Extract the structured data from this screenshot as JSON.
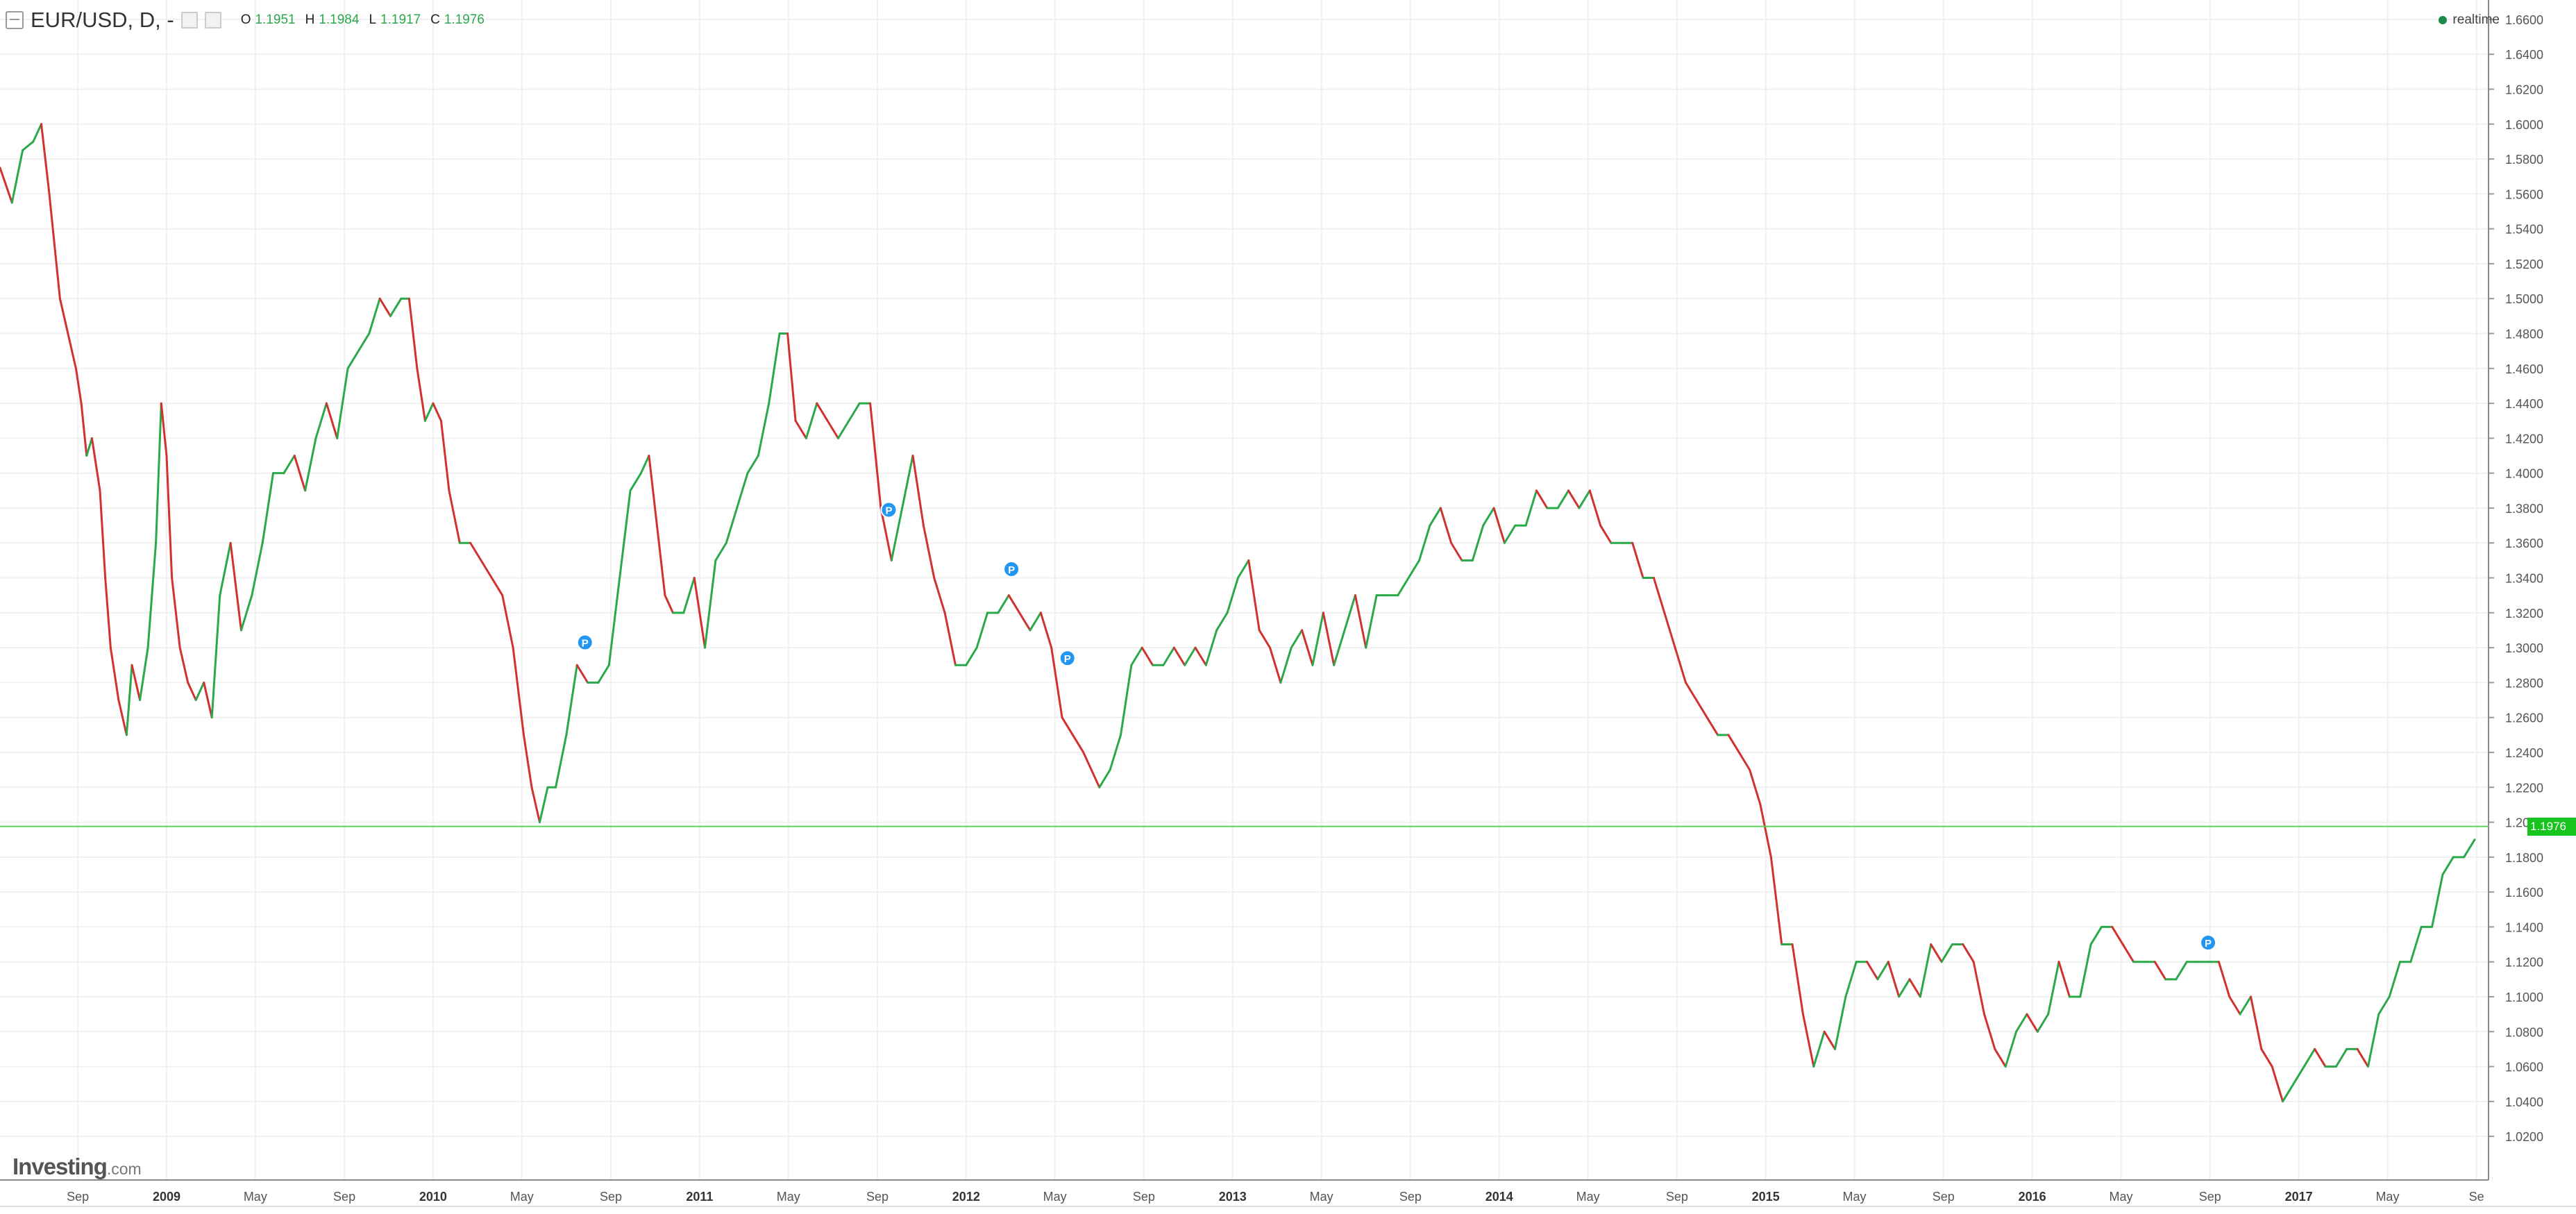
{
  "legend": {
    "symbol": "EUR/USD, D, -",
    "ohlc": [
      {
        "key": "O",
        "value": "1.1951"
      },
      {
        "key": "H",
        "value": "1.1984"
      },
      {
        "key": "L",
        "value": "1.1917"
      },
      {
        "key": "C",
        "value": "1.1976"
      }
    ]
  },
  "realtime_label": "realtime",
  "brand": {
    "name": "Investing",
    "suffix": ".com"
  },
  "last_price_label": "1.1976",
  "colors": {
    "up": "#2ba84a",
    "down": "#d2322d",
    "grid": "#f0f0f0",
    "price_line": "#5ad45a",
    "marker": "#2196f3",
    "axis_text": "#555555"
  },
  "chart_data": {
    "type": "line",
    "title": "EUR/USD, D, -",
    "xlabel": "",
    "ylabel": "",
    "ylim": [
      0.995,
      1.6711
    ],
    "y_ticks": [
      "1.6600",
      "1.6400",
      "1.6200",
      "1.6000",
      "1.5800",
      "1.5600",
      "1.5400",
      "1.5200",
      "1.5000",
      "1.4800",
      "1.4600",
      "1.4400",
      "1.4200",
      "1.4000",
      "1.3800",
      "1.3600",
      "1.3400",
      "1.3200",
      "1.3000",
      "1.2800",
      "1.2600",
      "1.2400",
      "1.2200",
      "1.2000",
      "1.1800",
      "1.1600",
      "1.1400",
      "1.1200",
      "1.1000",
      "1.0800",
      "1.0600",
      "1.0400",
      "1.0200"
    ],
    "x_ticks": [
      {
        "label": "Sep",
        "date": "2008.667"
      },
      {
        "label": "2009",
        "date": "2009.0"
      },
      {
        "label": "May",
        "date": "2009.333"
      },
      {
        "label": "Sep",
        "date": "2009.667"
      },
      {
        "label": "2010",
        "date": "2010.0"
      },
      {
        "label": "May",
        "date": "2010.333"
      },
      {
        "label": "Sep",
        "date": "2010.667"
      },
      {
        "label": "2011",
        "date": "2011.0"
      },
      {
        "label": "May",
        "date": "2011.333"
      },
      {
        "label": "Sep",
        "date": "2011.667"
      },
      {
        "label": "2012",
        "date": "2012.0"
      },
      {
        "label": "May",
        "date": "2012.333"
      },
      {
        "label": "Sep",
        "date": "2012.667"
      },
      {
        "label": "2013",
        "date": "2013.0"
      },
      {
        "label": "May",
        "date": "2013.333"
      },
      {
        "label": "Sep",
        "date": "2013.667"
      },
      {
        "label": "2014",
        "date": "2014.0"
      },
      {
        "label": "May",
        "date": "2014.333"
      },
      {
        "label": "Sep",
        "date": "2014.667"
      },
      {
        "label": "2015",
        "date": "2015.0"
      },
      {
        "label": "May",
        "date": "2015.333"
      },
      {
        "label": "Sep",
        "date": "2015.667"
      },
      {
        "label": "2016",
        "date": "2016.0"
      },
      {
        "label": "May",
        "date": "2016.333"
      },
      {
        "label": "Sep",
        "date": "2016.667"
      },
      {
        "label": "2017",
        "date": "2017.0"
      },
      {
        "label": "May",
        "date": "2017.333"
      },
      {
        "label": "Se",
        "date": "2017.667"
      }
    ],
    "x_range": [
      2008.375,
      2017.66
    ],
    "series": [
      {
        "name": "EUR/USD",
        "points": [
          [
            2008.375,
            1.575
          ],
          [
            2008.42,
            1.555
          ],
          [
            2008.46,
            1.585
          ],
          [
            2008.5,
            1.59
          ],
          [
            2008.53,
            1.6
          ],
          [
            2008.56,
            1.56
          ],
          [
            2008.6,
            1.5
          ],
          [
            2008.63,
            1.48
          ],
          [
            2008.66,
            1.46
          ],
          [
            2008.68,
            1.44
          ],
          [
            2008.7,
            1.41
          ],
          [
            2008.72,
            1.42
          ],
          [
            2008.75,
            1.39
          ],
          [
            2008.77,
            1.34
          ],
          [
            2008.79,
            1.3
          ],
          [
            2008.82,
            1.27
          ],
          [
            2008.85,
            1.25
          ],
          [
            2008.87,
            1.29
          ],
          [
            2008.9,
            1.27
          ],
          [
            2008.93,
            1.3
          ],
          [
            2008.96,
            1.36
          ],
          [
            2008.98,
            1.44
          ],
          [
            2009.0,
            1.41
          ],
          [
            2009.02,
            1.34
          ],
          [
            2009.05,
            1.3
          ],
          [
            2009.08,
            1.28
          ],
          [
            2009.11,
            1.27
          ],
          [
            2009.14,
            1.28
          ],
          [
            2009.17,
            1.26
          ],
          [
            2009.2,
            1.33
          ],
          [
            2009.24,
            1.36
          ],
          [
            2009.28,
            1.31
          ],
          [
            2009.32,
            1.33
          ],
          [
            2009.36,
            1.36
          ],
          [
            2009.4,
            1.4
          ],
          [
            2009.44,
            1.4
          ],
          [
            2009.48,
            1.41
          ],
          [
            2009.52,
            1.39
          ],
          [
            2009.56,
            1.42
          ],
          [
            2009.6,
            1.44
          ],
          [
            2009.64,
            1.42
          ],
          [
            2009.68,
            1.46
          ],
          [
            2009.72,
            1.47
          ],
          [
            2009.76,
            1.48
          ],
          [
            2009.8,
            1.5
          ],
          [
            2009.84,
            1.49
          ],
          [
            2009.88,
            1.5
          ],
          [
            2009.91,
            1.5
          ],
          [
            2009.94,
            1.46
          ],
          [
            2009.97,
            1.43
          ],
          [
            2010.0,
            1.44
          ],
          [
            2010.03,
            1.43
          ],
          [
            2010.06,
            1.39
          ],
          [
            2010.1,
            1.36
          ],
          [
            2010.14,
            1.36
          ],
          [
            2010.18,
            1.35
          ],
          [
            2010.22,
            1.34
          ],
          [
            2010.26,
            1.33
          ],
          [
            2010.3,
            1.3
          ],
          [
            2010.34,
            1.25
          ],
          [
            2010.37,
            1.22
          ],
          [
            2010.4,
            1.2
          ],
          [
            2010.43,
            1.22
          ],
          [
            2010.46,
            1.22
          ],
          [
            2010.5,
            1.25
          ],
          [
            2010.54,
            1.29
          ],
          [
            2010.58,
            1.28
          ],
          [
            2010.62,
            1.28
          ],
          [
            2010.66,
            1.29
          ],
          [
            2010.7,
            1.34
          ],
          [
            2010.74,
            1.39
          ],
          [
            2010.78,
            1.4
          ],
          [
            2010.81,
            1.41
          ],
          [
            2010.84,
            1.37
          ],
          [
            2010.87,
            1.33
          ],
          [
            2010.9,
            1.32
          ],
          [
            2010.94,
            1.32
          ],
          [
            2010.98,
            1.34
          ],
          [
            2011.02,
            1.3
          ],
          [
            2011.06,
            1.35
          ],
          [
            2011.1,
            1.36
          ],
          [
            2011.14,
            1.38
          ],
          [
            2011.18,
            1.4
          ],
          [
            2011.22,
            1.41
          ],
          [
            2011.26,
            1.44
          ],
          [
            2011.3,
            1.48
          ],
          [
            2011.33,
            1.48
          ],
          [
            2011.36,
            1.43
          ],
          [
            2011.4,
            1.42
          ],
          [
            2011.44,
            1.44
          ],
          [
            2011.48,
            1.43
          ],
          [
            2011.52,
            1.42
          ],
          [
            2011.56,
            1.43
          ],
          [
            2011.6,
            1.44
          ],
          [
            2011.64,
            1.44
          ],
          [
            2011.68,
            1.38
          ],
          [
            2011.72,
            1.35
          ],
          [
            2011.76,
            1.38
          ],
          [
            2011.8,
            1.41
          ],
          [
            2011.84,
            1.37
          ],
          [
            2011.88,
            1.34
          ],
          [
            2011.92,
            1.32
          ],
          [
            2011.96,
            1.29
          ],
          [
            2012.0,
            1.29
          ],
          [
            2012.04,
            1.3
          ],
          [
            2012.08,
            1.32
          ],
          [
            2012.12,
            1.32
          ],
          [
            2012.16,
            1.33
          ],
          [
            2012.2,
            1.32
          ],
          [
            2012.24,
            1.31
          ],
          [
            2012.28,
            1.32
          ],
          [
            2012.32,
            1.3
          ],
          [
            2012.36,
            1.26
          ],
          [
            2012.4,
            1.25
          ],
          [
            2012.44,
            1.24
          ],
          [
            2012.47,
            1.23
          ],
          [
            2012.5,
            1.22
          ],
          [
            2012.54,
            1.23
          ],
          [
            2012.58,
            1.25
          ],
          [
            2012.62,
            1.29
          ],
          [
            2012.66,
            1.3
          ],
          [
            2012.7,
            1.29
          ],
          [
            2012.74,
            1.29
          ],
          [
            2012.78,
            1.3
          ],
          [
            2012.82,
            1.29
          ],
          [
            2012.86,
            1.3
          ],
          [
            2012.9,
            1.29
          ],
          [
            2012.94,
            1.31
          ],
          [
            2012.98,
            1.32
          ],
          [
            2013.02,
            1.34
          ],
          [
            2013.06,
            1.35
          ],
          [
            2013.1,
            1.31
          ],
          [
            2013.14,
            1.3
          ],
          [
            2013.18,
            1.28
          ],
          [
            2013.22,
            1.3
          ],
          [
            2013.26,
            1.31
          ],
          [
            2013.3,
            1.29
          ],
          [
            2013.34,
            1.32
          ],
          [
            2013.38,
            1.29
          ],
          [
            2013.42,
            1.31
          ],
          [
            2013.46,
            1.33
          ],
          [
            2013.5,
            1.3
          ],
          [
            2013.54,
            1.33
          ],
          [
            2013.58,
            1.33
          ],
          [
            2013.62,
            1.33
          ],
          [
            2013.66,
            1.34
          ],
          [
            2013.7,
            1.35
          ],
          [
            2013.74,
            1.37
          ],
          [
            2013.78,
            1.38
          ],
          [
            2013.82,
            1.36
          ],
          [
            2013.86,
            1.35
          ],
          [
            2013.9,
            1.35
          ],
          [
            2013.94,
            1.37
          ],
          [
            2013.98,
            1.38
          ],
          [
            2014.02,
            1.36
          ],
          [
            2014.06,
            1.37
          ],
          [
            2014.1,
            1.37
          ],
          [
            2014.14,
            1.39
          ],
          [
            2014.18,
            1.38
          ],
          [
            2014.22,
            1.38
          ],
          [
            2014.26,
            1.39
          ],
          [
            2014.3,
            1.38
          ],
          [
            2014.34,
            1.39
          ],
          [
            2014.38,
            1.37
          ],
          [
            2014.42,
            1.36
          ],
          [
            2014.46,
            1.36
          ],
          [
            2014.5,
            1.36
          ],
          [
            2014.54,
            1.34
          ],
          [
            2014.58,
            1.34
          ],
          [
            2014.62,
            1.32
          ],
          [
            2014.66,
            1.3
          ],
          [
            2014.7,
            1.28
          ],
          [
            2014.74,
            1.27
          ],
          [
            2014.78,
            1.26
          ],
          [
            2014.82,
            1.25
          ],
          [
            2014.86,
            1.25
          ],
          [
            2014.9,
            1.24
          ],
          [
            2014.94,
            1.23
          ],
          [
            2014.98,
            1.21
          ],
          [
            2015.02,
            1.18
          ],
          [
            2015.06,
            1.13
          ],
          [
            2015.1,
            1.13
          ],
          [
            2015.14,
            1.09
          ],
          [
            2015.18,
            1.06
          ],
          [
            2015.22,
            1.08
          ],
          [
            2015.26,
            1.07
          ],
          [
            2015.3,
            1.1
          ],
          [
            2015.34,
            1.12
          ],
          [
            2015.38,
            1.12
          ],
          [
            2015.42,
            1.11
          ],
          [
            2015.46,
            1.12
          ],
          [
            2015.5,
            1.1
          ],
          [
            2015.54,
            1.11
          ],
          [
            2015.58,
            1.1
          ],
          [
            2015.62,
            1.13
          ],
          [
            2015.66,
            1.12
          ],
          [
            2015.7,
            1.13
          ],
          [
            2015.74,
            1.13
          ],
          [
            2015.78,
            1.12
          ],
          [
            2015.82,
            1.09
          ],
          [
            2015.86,
            1.07
          ],
          [
            2015.9,
            1.06
          ],
          [
            2015.94,
            1.08
          ],
          [
            2015.98,
            1.09
          ],
          [
            2016.02,
            1.08
          ],
          [
            2016.06,
            1.09
          ],
          [
            2016.1,
            1.12
          ],
          [
            2016.14,
            1.1
          ],
          [
            2016.18,
            1.1
          ],
          [
            2016.22,
            1.13
          ],
          [
            2016.26,
            1.14
          ],
          [
            2016.3,
            1.14
          ],
          [
            2016.34,
            1.13
          ],
          [
            2016.38,
            1.12
          ],
          [
            2016.42,
            1.12
          ],
          [
            2016.46,
            1.12
          ],
          [
            2016.5,
            1.11
          ],
          [
            2016.54,
            1.11
          ],
          [
            2016.58,
            1.12
          ],
          [
            2016.62,
            1.12
          ],
          [
            2016.66,
            1.12
          ],
          [
            2016.7,
            1.12
          ],
          [
            2016.74,
            1.1
          ],
          [
            2016.78,
            1.09
          ],
          [
            2016.82,
            1.1
          ],
          [
            2016.86,
            1.07
          ],
          [
            2016.9,
            1.06
          ],
          [
            2016.94,
            1.04
          ],
          [
            2016.98,
            1.05
          ],
          [
            2017.02,
            1.06
          ],
          [
            2017.06,
            1.07
          ],
          [
            2017.1,
            1.06
          ],
          [
            2017.14,
            1.06
          ],
          [
            2017.18,
            1.07
          ],
          [
            2017.22,
            1.07
          ],
          [
            2017.26,
            1.06
          ],
          [
            2017.3,
            1.09
          ],
          [
            2017.34,
            1.1
          ],
          [
            2017.38,
            1.12
          ],
          [
            2017.42,
            1.12
          ],
          [
            2017.46,
            1.14
          ],
          [
            2017.5,
            1.14
          ],
          [
            2017.54,
            1.17
          ],
          [
            2017.58,
            1.18
          ],
          [
            2017.62,
            1.18
          ],
          [
            2017.66,
            1.19
          ]
        ]
      }
    ],
    "last_price": 1.1976,
    "markers": [
      {
        "label": "P",
        "date": 2010.57,
        "value": 1.303
      },
      {
        "label": "P",
        "date": 2011.71,
        "value": 1.379
      },
      {
        "label": "P",
        "date": 2012.17,
        "value": 1.345
      },
      {
        "label": "P",
        "date": 2012.38,
        "value": 1.294
      },
      {
        "label": "P",
        "date": 2016.66,
        "value": 1.131
      }
    ],
    "grid": true,
    "legend_position": "top-left"
  }
}
